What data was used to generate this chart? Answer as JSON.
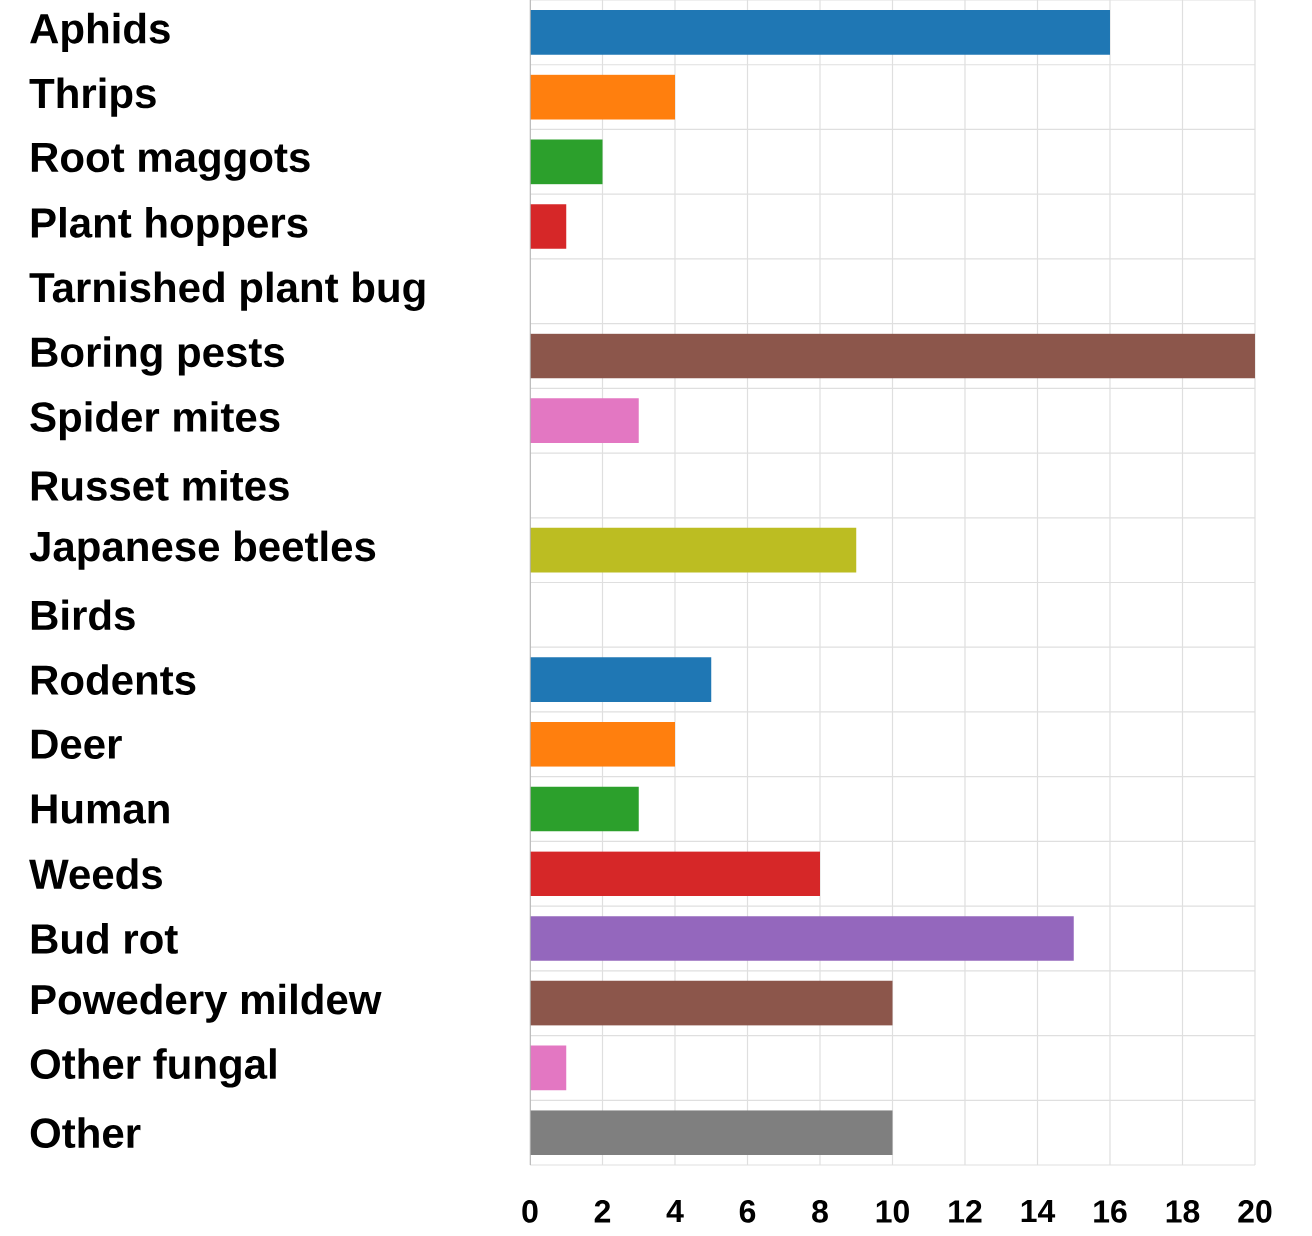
{
  "chart_data": {
    "type": "bar",
    "orientation": "horizontal",
    "categories": [
      "Aphids",
      "Thrips",
      "Root maggots",
      "Plant hoppers",
      "Tarnished plant bug",
      "Boring pests",
      "Spider mites",
      "Russet mites",
      "Japanese beetles",
      "Birds",
      "Rodents",
      "Deer",
      "Human",
      "Weeds",
      "Bud rot",
      "Powedery mildew",
      "Other fungal",
      "Other"
    ],
    "values": [
      16,
      4,
      2,
      1,
      0,
      20,
      3,
      0,
      9,
      0,
      5,
      4,
      3,
      8,
      15,
      10,
      1,
      10
    ],
    "colors": [
      "#1f77b4",
      "#ff7f0e",
      "#2ca02c",
      "#d62728",
      "#9467bd",
      "#8c564b",
      "#e377c2",
      "#7f7f7f",
      "#bcbd22",
      "#17becf",
      "#1f77b4",
      "#ff7f0e",
      "#2ca02c",
      "#d62728",
      "#9467bd",
      "#8c564b",
      "#e377c2",
      "#7f7f7f"
    ],
    "xlim": [
      0,
      20
    ],
    "xticks": [
      0,
      2,
      4,
      6,
      8,
      10,
      12,
      14,
      16,
      18,
      20
    ],
    "grid": true
  }
}
